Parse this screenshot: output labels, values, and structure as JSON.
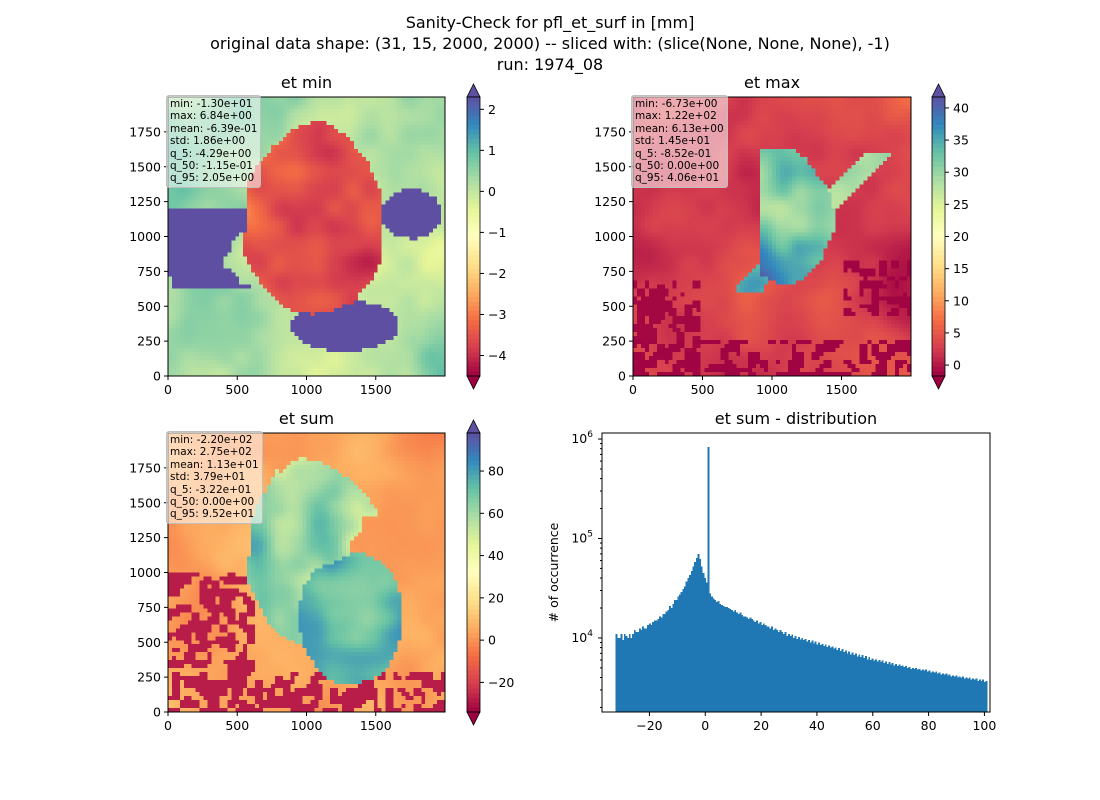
{
  "figure": {
    "suptitle_lines": [
      "Sanity-Check for pfl_et_surf in [mm]",
      "original data shape: (31, 15, 2000, 2000) -- sliced with: (slice(None, None, None), -1)",
      "run: 1974_08"
    ]
  },
  "maps": [
    {
      "title": "et min",
      "stats": [
        "min: -1.30e+01",
        "max: 6.84e+00",
        "mean: -6.39e-01",
        "std: 1.86e+00",
        "q_5: -4.29e+00",
        "q_50: -1.15e-01",
        "q_95: 2.05e+00"
      ],
      "x_ticks": [
        0,
        500,
        1000,
        1500
      ],
      "y_ticks": [
        0,
        250,
        500,
        750,
        1000,
        1250,
        1500,
        1750
      ],
      "extent": [
        0,
        2000
      ],
      "colorbar": {
        "ticks": [
          "2",
          "1",
          "0",
          "−1",
          "−2",
          "−3",
          "−4"
        ],
        "tick_values": [
          2,
          1,
          0,
          -1,
          -2,
          -3,
          -4
        ],
        "range": [
          -4.5,
          2.3
        ],
        "extend": "both",
        "cmap": "Spectral"
      }
    },
    {
      "title": "et max",
      "stats": [
        "min: -6.73e+00",
        "max: 1.22e+02",
        "mean: 6.13e+00",
        "std: 1.45e+01",
        "q_5: -8.52e-01",
        "q_50: 0.00e+00",
        "q_95: 4.06e+01"
      ],
      "x_ticks": [
        0,
        500,
        1000,
        1500
      ],
      "y_ticks": [
        0,
        250,
        500,
        750,
        1000,
        1250,
        1500,
        1750
      ],
      "extent": [
        0,
        2000
      ],
      "colorbar": {
        "ticks": [
          "40",
          "35",
          "30",
          "25",
          "20",
          "15",
          "10",
          "5",
          "0"
        ],
        "tick_values": [
          40,
          35,
          30,
          25,
          20,
          15,
          10,
          5,
          0
        ],
        "range": [
          -1.7,
          41.7
        ],
        "extend": "both",
        "cmap": "Spectral"
      }
    },
    {
      "title": "et sum",
      "stats": [
        "min: -2.20e+02",
        "max: 2.75e+02",
        "mean: 1.13e+01",
        "std: 3.79e+01",
        "q_5: -3.22e+01",
        "q_50: 0.00e+00",
        "q_95: 9.52e+01"
      ],
      "x_ticks": [
        0,
        500,
        1000,
        1500
      ],
      "y_ticks": [
        0,
        250,
        500,
        750,
        1000,
        1250,
        1500,
        1750
      ],
      "extent": [
        0,
        2000
      ],
      "colorbar": {
        "ticks": [
          "80",
          "60",
          "40",
          "20",
          "0",
          "−20"
        ],
        "tick_values": [
          80,
          60,
          40,
          20,
          0,
          -20
        ],
        "range": [
          -34,
          98
        ],
        "extend": "both",
        "cmap": "Spectral"
      }
    }
  ],
  "histogram": {
    "title": "et sum - distribution",
    "ylabel": "# of occurrence",
    "x_ticks": [
      "−20",
      "0",
      "20",
      "40",
      "60",
      "80",
      "100"
    ],
    "x_tick_values": [
      -20,
      0,
      20,
      40,
      60,
      80,
      100
    ],
    "xlim": [
      -37,
      102
    ],
    "y_scale": "log",
    "y_ticks": [
      {
        "base": "10",
        "exp": "4",
        "value": 10000
      },
      {
        "base": "10",
        "exp": "5",
        "value": 100000
      },
      {
        "base": "10",
        "exp": "6",
        "value": 1000000
      }
    ],
    "ylim": [
      1800,
      1150000
    ],
    "bar_color": "#1f77b4"
  },
  "chart_data": [
    {
      "type": "heatmap",
      "title": "et min",
      "xlim": [
        0,
        2000
      ],
      "ylim": [
        0,
        2000
      ],
      "colorbar_range": [
        -4.5,
        2.3
      ]
    },
    {
      "type": "heatmap",
      "title": "et max",
      "xlim": [
        0,
        2000
      ],
      "ylim": [
        0,
        2000
      ],
      "colorbar_range": [
        -1.7,
        41.7
      ]
    },
    {
      "type": "heatmap",
      "title": "et sum",
      "xlim": [
        0,
        2000
      ],
      "ylim": [
        0,
        2000
      ],
      "colorbar_range": [
        -34,
        98
      ]
    },
    {
      "type": "bar",
      "title": "et sum - distribution",
      "ylabel": "# of occurrence",
      "y_scale": "log",
      "xlim": [
        -37,
        102
      ],
      "ylim": [
        1800,
        1150000
      ],
      "bin_start": -32.2,
      "bin_width": 0.6,
      "values": [
        11000,
        10000,
        10000,
        11000,
        9500,
        11000,
        10500,
        10000,
        11000,
        10000,
        11000,
        12000,
        11500,
        11500,
        12500,
        12000,
        13000,
        12500,
        12500,
        13500,
        14000,
        13500,
        14500,
        15000,
        15000,
        15500,
        16500,
        16000,
        17500,
        17500,
        18500,
        19000,
        21000,
        20000,
        22000,
        24000,
        24000,
        26000,
        27500,
        29000,
        31000,
        33000,
        37000,
        40000,
        43000,
        47000,
        52000,
        58000,
        64000,
        70000,
        62000,
        52000,
        45000,
        40000,
        36000,
        830000,
        28000,
        26000,
        25000,
        24000,
        23000,
        23500,
        22000,
        21500,
        21000,
        20500,
        20500,
        20000,
        19500,
        19000,
        18500,
        19000,
        18000,
        17500,
        18000,
        17000,
        16500,
        16500,
        16000,
        15500,
        16000,
        15500,
        15000,
        14500,
        15000,
        14000,
        14500,
        13500,
        14000,
        13500,
        13000,
        13000,
        12500,
        13000,
        12000,
        12500,
        12000,
        11500,
        12000,
        11500,
        11000,
        11500,
        10500,
        11000,
        10500,
        10800,
        10000,
        10500,
        9800,
        10200,
        9600,
        10000,
        9500,
        9800,
        9200,
        9500,
        9000,
        9400,
        8800,
        9200,
        8600,
        9000,
        8500,
        8700,
        8300,
        8600,
        8100,
        8400,
        8000,
        8200,
        7800,
        8000,
        7600,
        7900,
        7400,
        7700,
        7200,
        7500,
        7000,
        7300,
        6800,
        7100,
        6700,
        7000,
        6500,
        6800,
        6400,
        6700,
        6300,
        6600,
        6100,
        6400,
        6000,
        6200,
        5900,
        6100,
        5800,
        6000,
        5700,
        5900,
        5600,
        5800,
        5500,
        5700,
        5400,
        5600,
        5300,
        5500,
        5200,
        5400,
        5200,
        5300,
        5100,
        5200,
        5000,
        5100,
        4900,
        5000,
        4900,
        5000,
        4800,
        4900,
        4700,
        4800,
        4700,
        4800,
        4600,
        4700,
        4500,
        4600,
        4500,
        4600,
        4400,
        4500,
        4300,
        4400,
        4300,
        4400,
        4200,
        4300,
        4100,
        4200,
        4100,
        4200,
        4000,
        4100,
        4000,
        4100,
        3900,
        4000,
        3900,
        4000,
        3800,
        3900,
        3800,
        3900,
        3700,
        3800,
        3700,
        3800,
        3600,
        3700
      ]
    }
  ]
}
